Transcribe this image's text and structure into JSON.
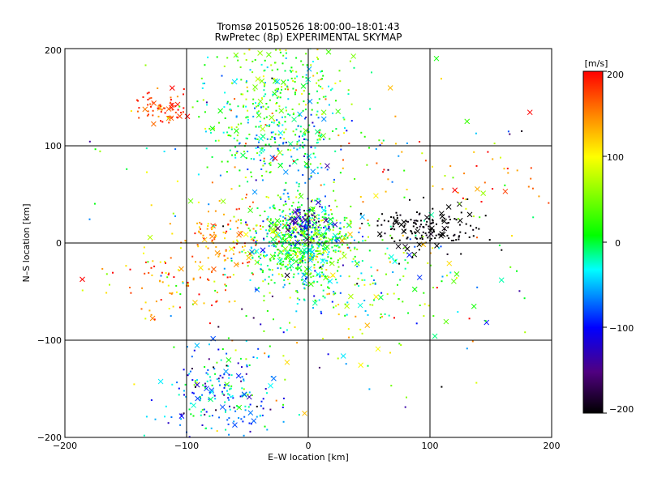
{
  "chart_data": {
    "type": "scatter",
    "title": "Tromsø 20150526 18:00:00–18:01:43",
    "subtitle": "RwPretec (8p) EXPERIMENTAL SKYMAP",
    "xlabel": "E–W location [km]",
    "ylabel": "N–S location [km]",
    "xlim": [
      -200,
      200
    ],
    "ylim": [
      -200,
      200
    ],
    "x_ticks": [
      "−200",
      "−100",
      "0",
      "100",
      "200"
    ],
    "y_ticks": [
      "−200",
      "−100",
      "0",
      "100",
      "200"
    ],
    "grid": true,
    "colorbar": {
      "label": "[m/s]",
      "range": [
        -200,
        200
      ],
      "ticks": [
        "200",
        "100",
        "0",
        "−100",
        "−200"
      ],
      "colormap": "black-purple-blue-cyan-green-yellow-orange-red"
    },
    "markers": {
      "small": "dot",
      "large": "x"
    },
    "clusters": [
      {
        "cx": -5,
        "cy": 0,
        "sx": 22,
        "sy": 22,
        "n": 650,
        "vm": 10,
        "vs": 45
      },
      {
        "cx": -2,
        "cy": 20,
        "sx": 10,
        "sy": 8,
        "n": 90,
        "vm": -120,
        "vs": 30
      },
      {
        "cx": -30,
        "cy": 150,
        "sx": 30,
        "sy": 35,
        "n": 320,
        "vm": 30,
        "vs": 45
      },
      {
        "cx": -20,
        "cy": 100,
        "sx": 25,
        "sy": 20,
        "n": 150,
        "vm": -40,
        "vs": 45
      },
      {
        "cx": -120,
        "cy": 140,
        "sx": 10,
        "sy": 8,
        "n": 70,
        "vm": 180,
        "vs": 20
      },
      {
        "cx": 95,
        "cy": 15,
        "sx": 20,
        "sy": 12,
        "n": 160,
        "vm": -200,
        "vs": 8
      },
      {
        "cx": -70,
        "cy": 5,
        "sx": 18,
        "sy": 22,
        "n": 110,
        "vm": 150,
        "vs": 35
      },
      {
        "cx": -70,
        "cy": -160,
        "sx": 25,
        "sy": 25,
        "n": 210,
        "vm": -60,
        "vs": 50
      },
      {
        "cx": -110,
        "cy": -40,
        "sx": 25,
        "sy": 20,
        "n": 70,
        "vm": 140,
        "vs": 50
      },
      {
        "cx": 130,
        "cy": 70,
        "sx": 40,
        "sy": 20,
        "n": 45,
        "vm": 160,
        "vs": 40
      },
      {
        "cx": 40,
        "cy": -40,
        "sx": 40,
        "sy": 30,
        "n": 130,
        "vm": 20,
        "vs": 60
      },
      {
        "cx": 0,
        "cy": 0,
        "sx": 90,
        "sy": 90,
        "n": 350,
        "vm": 20,
        "vs": 90
      }
    ]
  }
}
